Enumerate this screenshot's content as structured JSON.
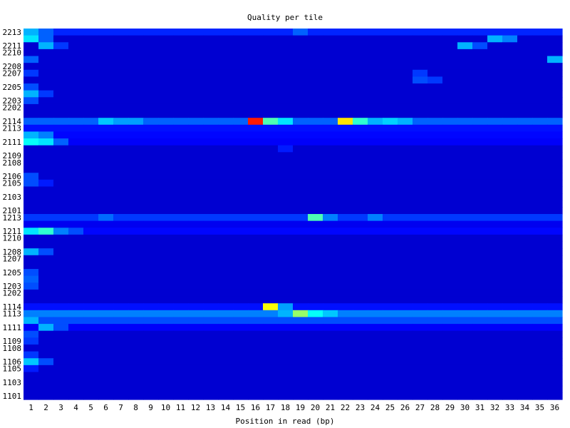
{
  "chart_data": {
    "type": "heatmap",
    "title": "Quality per tile",
    "xlabel": "Position in read (bp)",
    "ylabel": "",
    "x": [
      1,
      2,
      3,
      4,
      5,
      6,
      7,
      8,
      9,
      10,
      11,
      12,
      13,
      14,
      15,
      16,
      17,
      18,
      19,
      20,
      21,
      22,
      23,
      24,
      25,
      26,
      27,
      28,
      29,
      30,
      31,
      32,
      33,
      34,
      35,
      36
    ],
    "y_tick_labels": [
      "2213",
      "2211",
      "2210",
      "2208",
      "2207",
      "2205",
      "2203",
      "2202",
      "2114",
      "2113",
      "2111",
      "2109",
      "2108",
      "2106",
      "2105",
      "2103",
      "2101",
      "1213",
      "1211",
      "1210",
      "1208",
      "1207",
      "1205",
      "1203",
      "1202",
      "1114",
      "1113",
      "1111",
      "1109",
      "1108",
      "1106",
      "1105",
      "1103",
      "1101"
    ],
    "tiles": [
      "2213",
      "2212",
      "2211",
      "2210",
      "2209",
      "2208",
      "2207",
      "2206",
      "2205",
      "2204",
      "2203",
      "2202",
      "2201",
      "2114",
      "2113",
      "2112",
      "2111",
      "2110",
      "2109",
      "2108",
      "2107",
      "2106",
      "2105",
      "2104",
      "2103",
      "2102",
      "2101",
      "1213",
      "1212",
      "1211",
      "1210",
      "1209",
      "1208",
      "1207",
      "1206",
      "1205",
      "1204",
      "1203",
      "1202",
      "1201",
      "1114",
      "1113",
      "1112",
      "1111",
      "1110",
      "1109",
      "1108",
      "1107",
      "1106",
      "1105",
      "1104",
      "1103",
      "1102",
      "1101"
    ],
    "baseline": 0.08,
    "row_baselines": {
      "2213": 0.16,
      "2114": 0.22,
      "2113": 0.14,
      "2112": 0.13,
      "2111": 0.12,
      "1213": 0.18,
      "1212": 0.11,
      "1211": 0.13,
      "1114": 0.14,
      "1113": 0.25,
      "1112": 0.2,
      "1111": 0.12
    },
    "hotspots": [
      {
        "tile": "2213",
        "x": 1,
        "value": 0.3
      },
      {
        "tile": "2213",
        "x": 2,
        "value": 0.22
      },
      {
        "tile": "2213",
        "x": 19,
        "value": 0.22
      },
      {
        "tile": "2212",
        "x": 1,
        "value": 0.35
      },
      {
        "tile": "2212",
        "x": 2,
        "value": 0.22
      },
      {
        "tile": "2212",
        "x": 32,
        "value": 0.3
      },
      {
        "tile": "2212",
        "x": 33,
        "value": 0.25
      },
      {
        "tile": "2211",
        "x": 2,
        "value": 0.3
      },
      {
        "tile": "2211",
        "x": 3,
        "value": 0.18
      },
      {
        "tile": "2211",
        "x": 30,
        "value": 0.3
      },
      {
        "tile": "2211",
        "x": 31,
        "value": 0.2
      },
      {
        "tile": "2209",
        "x": 1,
        "value": 0.22
      },
      {
        "tile": "2209",
        "x": 36,
        "value": 0.3
      },
      {
        "tile": "2207",
        "x": 1,
        "value": 0.18
      },
      {
        "tile": "2207",
        "x": 27,
        "value": 0.18
      },
      {
        "tile": "2206",
        "x": 27,
        "value": 0.2
      },
      {
        "tile": "2206",
        "x": 28,
        "value": 0.18
      },
      {
        "tile": "2205",
        "x": 1,
        "value": 0.2
      },
      {
        "tile": "2204",
        "x": 1,
        "value": 0.3
      },
      {
        "tile": "2204",
        "x": 2,
        "value": 0.18
      },
      {
        "tile": "2203",
        "x": 1,
        "value": 0.2
      },
      {
        "tile": "2114",
        "x": 6,
        "value": 0.32
      },
      {
        "tile": "2114",
        "x": 7,
        "value": 0.28
      },
      {
        "tile": "2114",
        "x": 8,
        "value": 0.28
      },
      {
        "tile": "2114",
        "x": 16,
        "value": 0.85
      },
      {
        "tile": "2114",
        "x": 17,
        "value": 0.45
      },
      {
        "tile": "2114",
        "x": 18,
        "value": 0.35
      },
      {
        "tile": "2114",
        "x": 22,
        "value": 0.65
      },
      {
        "tile": "2114",
        "x": 23,
        "value": 0.42
      },
      {
        "tile": "2114",
        "x": 24,
        "value": 0.3
      },
      {
        "tile": "2114",
        "x": 25,
        "value": 0.33
      },
      {
        "tile": "2114",
        "x": 26,
        "value": 0.3
      },
      {
        "tile": "2112",
        "x": 1,
        "value": 0.3
      },
      {
        "tile": "2112",
        "x": 2,
        "value": 0.25
      },
      {
        "tile": "2111",
        "x": 1,
        "value": 0.38
      },
      {
        "tile": "2111",
        "x": 2,
        "value": 0.35
      },
      {
        "tile": "2111",
        "x": 3,
        "value": 0.22
      },
      {
        "tile": "2110",
        "x": 18,
        "value": 0.15
      },
      {
        "tile": "2106",
        "x": 1,
        "value": 0.2
      },
      {
        "tile": "2105",
        "x": 1,
        "value": 0.2
      },
      {
        "tile": "2105",
        "x": 2,
        "value": 0.15
      },
      {
        "tile": "1213",
        "x": 6,
        "value": 0.23
      },
      {
        "tile": "1213",
        "x": 20,
        "value": 0.45
      },
      {
        "tile": "1213",
        "x": 21,
        "value": 0.25
      },
      {
        "tile": "1213",
        "x": 24,
        "value": 0.25
      },
      {
        "tile": "1211",
        "x": 1,
        "value": 0.35
      },
      {
        "tile": "1211",
        "x": 2,
        "value": 0.42
      },
      {
        "tile": "1211",
        "x": 3,
        "value": 0.25
      },
      {
        "tile": "1211",
        "x": 4,
        "value": 0.2
      },
      {
        "tile": "1208",
        "x": 1,
        "value": 0.3
      },
      {
        "tile": "1208",
        "x": 2,
        "value": 0.2
      },
      {
        "tile": "1205",
        "x": 1,
        "value": 0.2
      },
      {
        "tile": "1204",
        "x": 1,
        "value": 0.22
      },
      {
        "tile": "1203",
        "x": 1,
        "value": 0.2
      },
      {
        "tile": "1114",
        "x": 17,
        "value": 0.62
      },
      {
        "tile": "1114",
        "x": 18,
        "value": 0.28
      },
      {
        "tile": "1113",
        "x": 18,
        "value": 0.3
      },
      {
        "tile": "1113",
        "x": 19,
        "value": 0.52
      },
      {
        "tile": "1113",
        "x": 20,
        "value": 0.38
      },
      {
        "tile": "1113",
        "x": 21,
        "value": 0.32
      },
      {
        "tile": "1112",
        "x": 1,
        "value": 0.3
      },
      {
        "tile": "1111",
        "x": 2,
        "value": 0.3
      },
      {
        "tile": "1111",
        "x": 3,
        "value": 0.2
      },
      {
        "tile": "1110",
        "x": 1,
        "value": 0.2
      },
      {
        "tile": "1109",
        "x": 1,
        "value": 0.18
      },
      {
        "tile": "1107",
        "x": 1,
        "value": 0.18
      },
      {
        "tile": "1106",
        "x": 1,
        "value": 0.32
      },
      {
        "tile": "1106",
        "x": 2,
        "value": 0.2
      },
      {
        "tile": "1105",
        "x": 1,
        "value": 0.15
      }
    ],
    "colormap": "jet",
    "grid": false,
    "legend": "none"
  }
}
